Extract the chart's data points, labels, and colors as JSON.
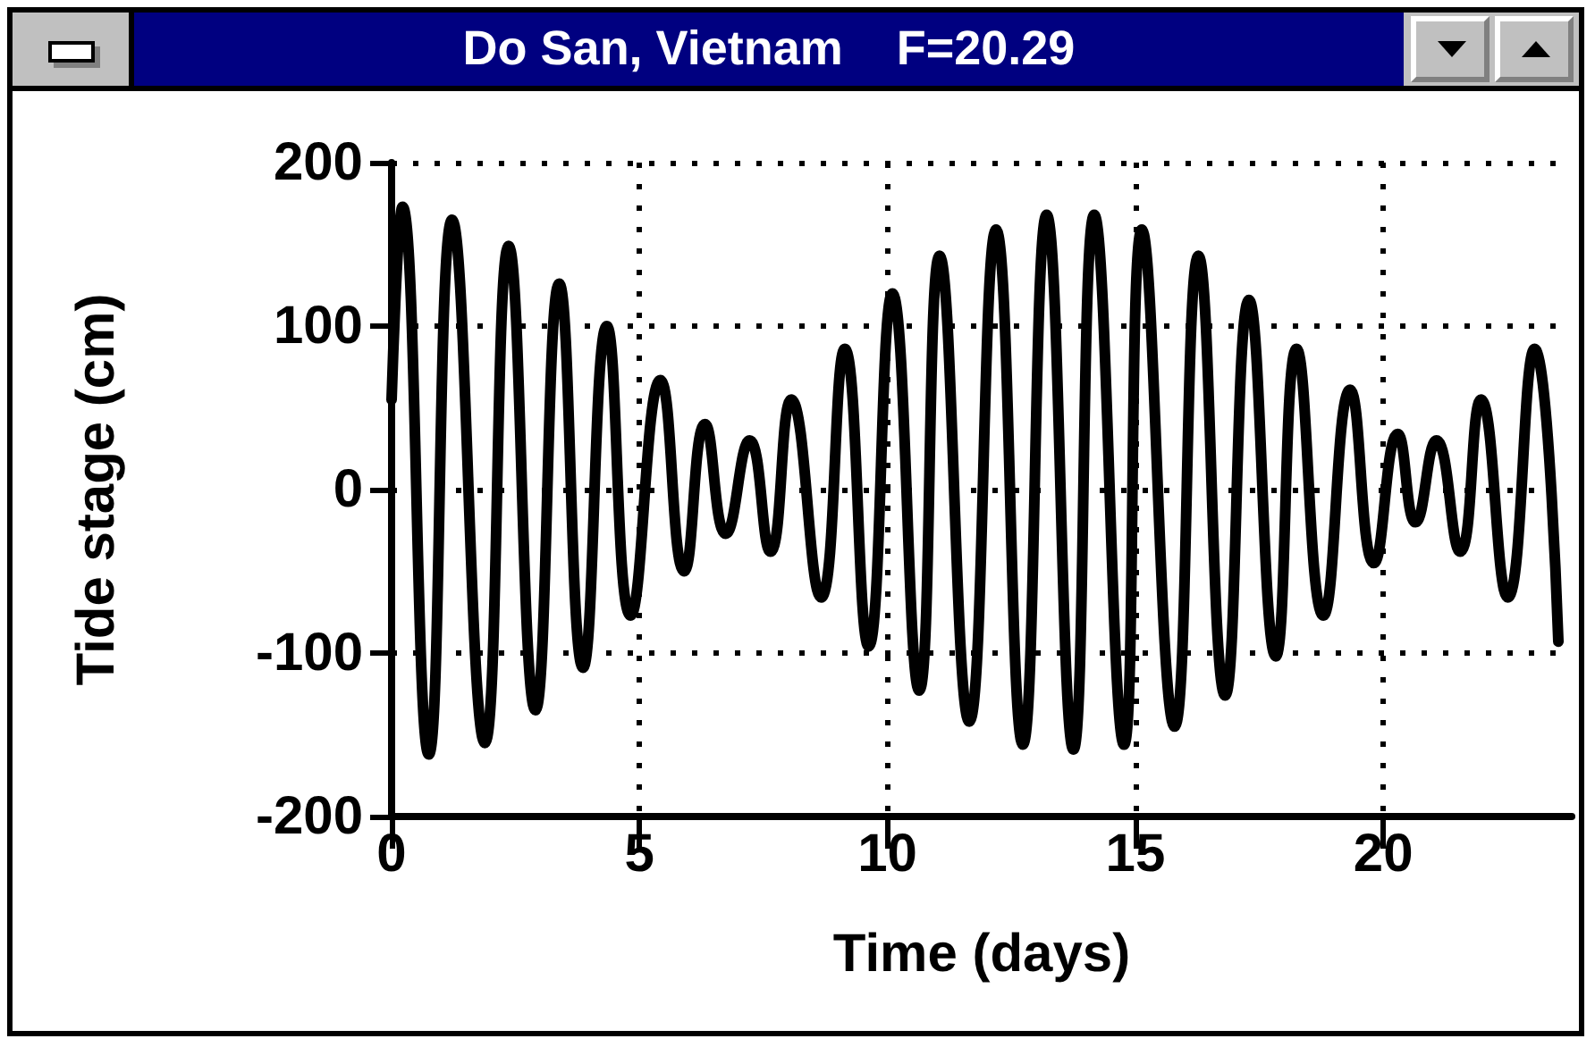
{
  "chart_data": {
    "type": "line",
    "title": "Do San, Vietnam    F=20.29",
    "xlabel": "Time (days)",
    "ylabel": "Tide stage (cm)",
    "series": [
      {
        "color": "#000000",
        "x": [
          0,
          0.22,
          0.75,
          1.22,
          1.88,
          2.36,
          2.9,
          3.38,
          3.86,
          4.34,
          4.82,
          5.42,
          5.9,
          6.32,
          6.74,
          7.22,
          7.64,
          8.06,
          8.66,
          9.14,
          9.62,
          10.1,
          10.64,
          11.05,
          11.65,
          12.19,
          12.73,
          13.21,
          13.75,
          14.17,
          14.77,
          15.13,
          15.79,
          16.27,
          16.81,
          17.29,
          17.83,
          18.25,
          18.79,
          19.33,
          19.81,
          20.29,
          20.65,
          21.07,
          21.55,
          21.97,
          22.51,
          23.05,
          23.53
        ],
        "values": [
          55,
          173,
          -162,
          165,
          -155,
          149,
          -135,
          126,
          -109,
          100,
          -77,
          67,
          -50,
          40,
          -27,
          30,
          -38,
          55,
          -66,
          86,
          -96,
          120,
          -123,
          143,
          -142,
          159,
          -156,
          168,
          -159,
          168,
          -156,
          159,
          -145,
          143,
          -126,
          116,
          -102,
          86,
          -77,
          61,
          -45,
          34,
          -20,
          30,
          -38,
          55,
          -66,
          86,
          -93
        ]
      }
    ],
    "xlim": [
      0,
      23.8
    ],
    "xticks": [
      0,
      5,
      10,
      15,
      20
    ],
    "ylim": [
      -200,
      200
    ],
    "yticks": [
      -200,
      -100,
      0,
      100,
      200
    ],
    "grid": true,
    "marker": "none",
    "line_style": "solid"
  }
}
